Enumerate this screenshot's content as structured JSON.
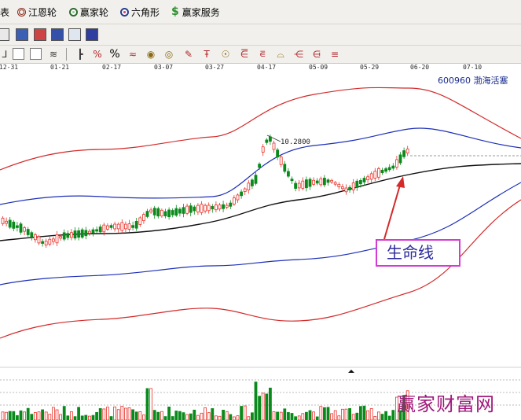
{
  "menu": {
    "first_label": "表",
    "items": [
      {
        "label": "江恩轮",
        "icon": "jiangen-wheel-icon"
      },
      {
        "label": "赢家轮",
        "icon": "yingjia-wheel-icon"
      },
      {
        "label": "六角形",
        "icon": "hexagon-icon"
      },
      {
        "label": "赢家服务",
        "icon": "dollar-icon"
      }
    ]
  },
  "toolbar2": {
    "percent_label": "%"
  },
  "date_axis": [
    "12-31",
    "01-21",
    "02-17",
    "03-07",
    "03-27",
    "04-17",
    "05-09",
    "05-29",
    "06-20",
    "07-10"
  ],
  "stock": {
    "code": "600960",
    "name": "渤海活塞"
  },
  "price_marker": "10.2800",
  "annotation": "生命线",
  "watermark": "赢家财富网",
  "colors": {
    "up_candle": "#e8332b",
    "down_candle": "#0b8a1c",
    "band_outer": "#d42a2a",
    "band_mid": "#1d2fb8",
    "life_line": "#111111",
    "annotation_border": "#d43bd4"
  }
}
